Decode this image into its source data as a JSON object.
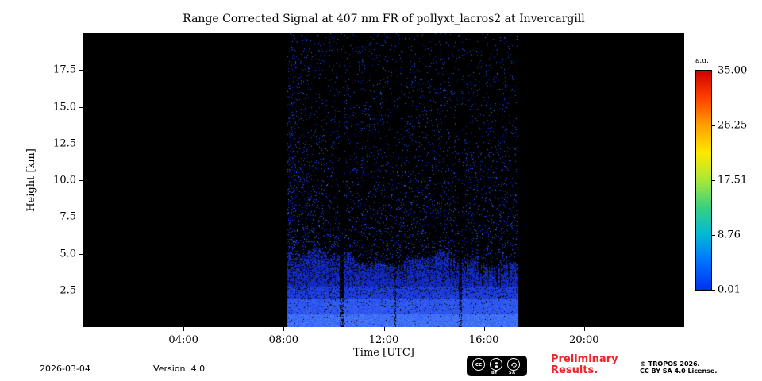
{
  "page": {
    "background": "#ffffff"
  },
  "chart_data": {
    "type": "heatmap",
    "title": "Range Corrected Signal at 407 nm FR of pollyxt_lacros2 at Invercargill",
    "xlabel": "Time [UTC]",
    "ylabel": "Height [km]",
    "xlim_hours": [
      0,
      24
    ],
    "ylim_km": [
      0,
      20
    ],
    "x_tick_labels": [
      "04:00",
      "08:00",
      "12:00",
      "16:00",
      "20:00"
    ],
    "x_tick_hours": [
      4,
      8,
      12,
      16,
      20
    ],
    "y_tick_labels": [
      "2.5",
      "5.0",
      "7.5",
      "10.0",
      "12.5",
      "15.0",
      "17.5"
    ],
    "y_tick_values": [
      2.5,
      5.0,
      7.5,
      10.0,
      12.5,
      15.0,
      17.5
    ],
    "plot_background": "#000000",
    "data_window_hours": [
      8.12,
      17.35
    ],
    "boundary_layer": {
      "top_km_mean": 4.65,
      "bright_surface_km": 0.9,
      "dense_km": 2.8
    },
    "gaps_hours": [
      [
        10.24,
        10.38,
        0.1
      ],
      [
        12.4,
        12.48,
        0.45
      ],
      [
        14.98,
        15.12,
        0.3
      ]
    ],
    "clear_air_noise": {
      "density": 0.085,
      "decay_km": 8.5,
      "floor": 0.02
    },
    "speckle_colors": [
      "#0018b8",
      "#1030d8",
      "#2248f0",
      "#2f5aff"
    ],
    "colorbar": {
      "label": "a.u.",
      "tick_labels": [
        "35.00",
        "26.25",
        "17.51",
        "8.76",
        "0.01"
      ],
      "vmin": 0.01,
      "vmax": 35.0,
      "gradient_top_to_bottom": [
        "#cf0000",
        "#ff4000",
        "#ffa000",
        "#ffe800",
        "#a8e838",
        "#38d080",
        "#00b8d8",
        "#0070ff",
        "#0030f0"
      ]
    }
  },
  "footer": {
    "date": "2026-03-04",
    "version": "Version: 4.0",
    "preliminary_line1": "Preliminary",
    "preliminary_line2": "Results.",
    "preliminary_color": "#e8262d",
    "copyright_line1": "© TROPOS 2026.",
    "copyright_line2": "CC BY SA 4.0 License.",
    "license_badge": {
      "cc_label": "cc",
      "by_label": "BY",
      "sa_label": "SA"
    }
  }
}
